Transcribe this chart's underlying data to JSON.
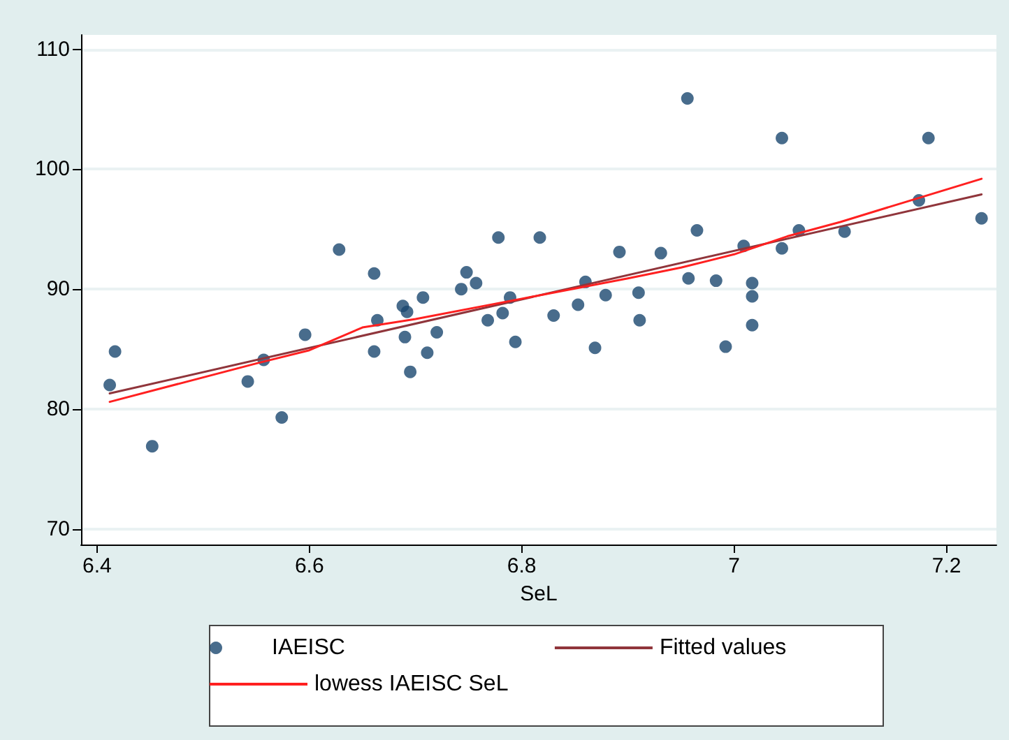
{
  "chart_data": {
    "type": "scatter",
    "xlabel": "SeL",
    "xlim": [
      6.385,
      7.247
    ],
    "xticks": [
      6.4,
      6.6,
      6.8,
      7,
      7.2
    ],
    "ylim": [
      68.7,
      111.2
    ],
    "yticks": [
      70,
      80,
      90,
      100,
      110
    ],
    "grid": "y",
    "legend": "bottom",
    "marker": "circle",
    "series": [
      {
        "name": "IAEISC",
        "color": "#1a476f",
        "x": [
          6.412,
          6.417,
          6.452,
          6.542,
          6.557,
          6.574,
          6.596,
          6.628,
          6.661,
          6.664,
          6.661,
          6.688,
          6.692,
          6.695,
          6.707,
          6.69,
          6.711,
          6.72,
          6.743,
          6.748,
          6.757,
          6.768,
          6.778,
          6.782,
          6.789,
          6.794,
          6.817,
          6.83,
          6.853,
          6.86,
          6.869,
          6.879,
          6.892,
          6.91,
          6.911,
          6.931,
          6.956,
          6.957,
          6.965,
          6.983,
          6.992,
          7.009,
          7.017,
          7.017,
          7.017,
          7.045,
          7.045,
          7.061,
          7.104,
          7.174,
          7.183,
          7.233
        ],
        "values": [
          82.0,
          84.8,
          76.9,
          82.3,
          84.1,
          79.3,
          86.2,
          93.3,
          91.3,
          87.4,
          84.8,
          88.6,
          88.1,
          83.1,
          89.3,
          86.0,
          84.7,
          86.4,
          90.0,
          91.4,
          90.5,
          87.4,
          94.3,
          88.0,
          89.3,
          85.6,
          94.3,
          87.8,
          88.7,
          90.6,
          85.1,
          89.5,
          93.1,
          89.7,
          87.4,
          93.0,
          105.9,
          90.9,
          94.9,
          90.7,
          85.2,
          93.6,
          90.5,
          89.4,
          87.0,
          102.6,
          93.4,
          94.9,
          94.8,
          97.4,
          102.6,
          95.9
        ]
      },
      {
        "name": "Fitted values",
        "type": "line",
        "color": "#90353b",
        "marker": "none",
        "x": [
          6.412,
          7.233
        ],
        "values": [
          81.3,
          97.9
        ]
      },
      {
        "name": "lowess IAEISC SeL",
        "type": "line",
        "color": "#ff2020",
        "marker": "none",
        "x": [
          6.412,
          6.55,
          6.6,
          6.65,
          6.7,
          6.8,
          6.9,
          6.95,
          7.0,
          7.05,
          7.1,
          7.17,
          7.233
        ],
        "values": [
          80.6,
          83.8,
          84.9,
          86.8,
          87.5,
          89.2,
          90.9,
          91.8,
          92.9,
          94.4,
          95.6,
          97.5,
          99.2
        ]
      }
    ]
  }
}
